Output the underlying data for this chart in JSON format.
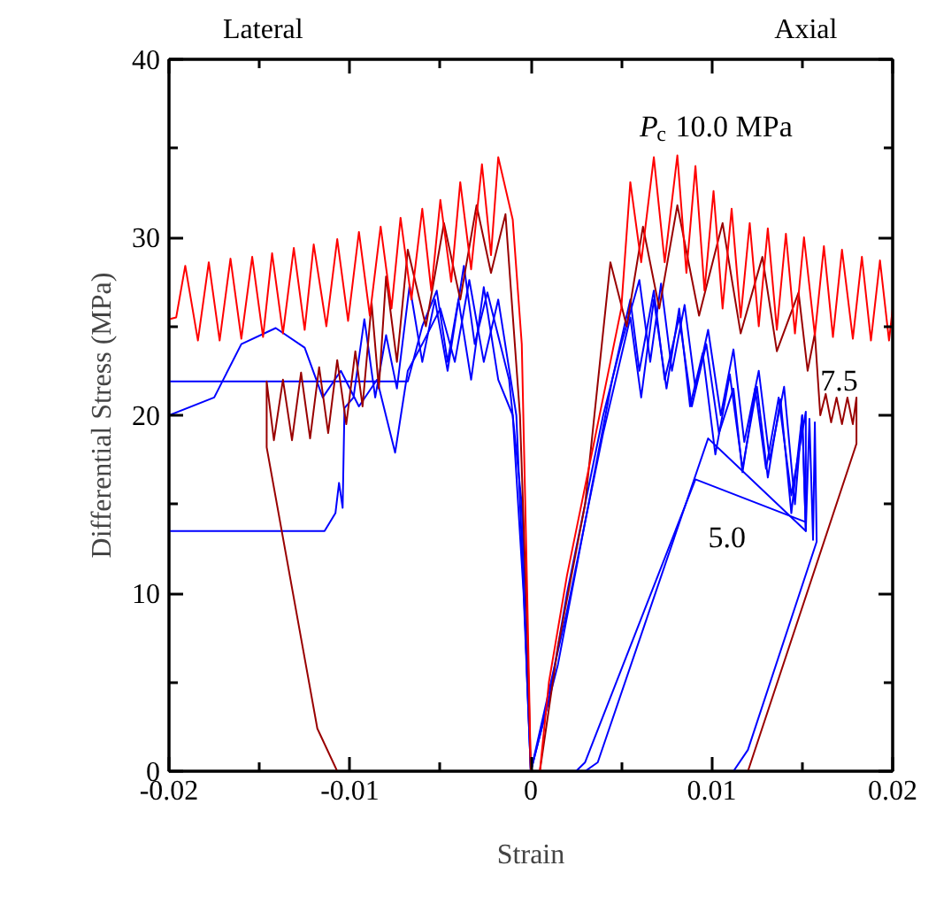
{
  "chart_data": {
    "type": "line",
    "xlabel": "Strain",
    "ylabel": "Differential Stress (MPa)",
    "xlim": [
      -0.02,
      0.02
    ],
    "ylim": [
      0,
      40
    ],
    "xticks": [
      -0.02,
      {
        "value": -0.015,
        "label": null
      },
      -0.01,
      {
        "value": -0.005,
        "label": null
      },
      0,
      {
        "value": 0.005,
        "label": null
      },
      0.01,
      {
        "value": 0.015,
        "label": null
      },
      0.02
    ],
    "yticks": [
      0,
      {
        "value": 5,
        "label": null
      },
      10,
      {
        "value": 15,
        "label": null
      },
      20,
      {
        "value": 25,
        "label": null
      },
      30,
      {
        "value": 35,
        "label": null
      },
      40
    ],
    "grid": false,
    "line_style": "solid",
    "annotations": [
      "Lateral",
      "Axial",
      "P$_{c}$ 10.0 MPa",
      "7.5",
      "5.0"
    ],
    "series": [
      {
        "color": "#0000ff",
        "x": [
          -0.02,
          -0.0114,
          -0.0108,
          -0.0106,
          -0.0104,
          -0.0103,
          -0.0098,
          -0.0092,
          -0.0086,
          -0.008,
          -0.0074,
          -0.0067,
          -0.006,
          -0.0053,
          -0.0046,
          -0.0037,
          -0.0031,
          -0.0024,
          -0.0012,
          -0.0005,
          -0.0002,
          0,
          0.001,
          0.002,
          0.003,
          0.004,
          0.005,
          0.006,
          0.0066,
          0.0072,
          0.0078,
          0.0085,
          0.0091,
          0.0098,
          0.0105,
          0.0112,
          0.0118,
          0.0126,
          0.0132,
          0.014,
          0.0146,
          0.015,
          0.0152,
          0.0154,
          0.0156,
          0.0157,
          0.0158,
          0.012,
          0.0112
        ],
        "values": [
          13.5,
          13.5,
          14.5,
          16.2,
          14.8,
          20.4,
          21,
          25.4,
          21,
          24.5,
          21.5,
          27.3,
          23,
          26.5,
          22.5,
          28.4,
          24,
          26.9,
          22,
          15,
          5,
          0,
          4,
          10,
          15,
          20,
          24,
          27.6,
          23,
          27.4,
          22.5,
          26.2,
          21.5,
          24.8,
          20,
          23.7,
          18.5,
          22.5,
          17.5,
          21.6,
          15,
          20,
          13.5,
          19.8,
          13,
          19.6,
          12.9,
          1.2,
          0
        ]
      },
      {
        "color": "#0000ff",
        "x": [
          -0.02,
          -0.0068,
          -0.006,
          -0.0052,
          -0.0046,
          -0.004,
          -0.0033,
          -0.0026,
          -0.0018,
          -0.001,
          -0.0004,
          0,
          0.0015,
          0.003,
          0.0045,
          0.0055,
          0.006,
          0.0068,
          0.0074,
          0.0082,
          0.0089,
          0.0097,
          0.0104,
          0.0112,
          0.0117,
          0.0124,
          0.013,
          0.0137,
          0.0144,
          0.0152,
          0.0152,
          0.0091,
          0.003,
          0.0025
        ],
        "values": [
          21.9,
          21.9,
          25,
          27,
          23,
          26.5,
          22,
          27.2,
          22,
          20,
          10,
          0,
          6,
          14,
          22,
          26.5,
          22.5,
          27,
          22,
          25.5,
          20.5,
          24,
          19,
          21.5,
          16.8,
          21.5,
          17,
          21,
          15.5,
          20.2,
          14,
          16.4,
          0.5,
          0
        ]
      },
      {
        "color": "#0000ff",
        "x": [
          -0.02,
          -0.0175,
          -0.016,
          -0.0141,
          -0.0125,
          -0.0115,
          -0.0105,
          -0.0095,
          -0.0085,
          -0.0075,
          -0.0068,
          -0.006,
          -0.005,
          -0.0042,
          -0.0034,
          -0.0026,
          -0.0018,
          -0.0008,
          -0.0003,
          0,
          0.002,
          0.004,
          0.0055,
          0.0061,
          0.0068,
          0.0075,
          0.0082,
          0.0088,
          0.0095,
          0.0102,
          0.011,
          0.0117,
          0.0125,
          0.0131,
          0.0138,
          0.0144,
          0.015,
          0.0152,
          0.0098,
          0.0037,
          0.003
        ],
        "values": [
          20,
          21,
          24,
          24.9,
          23.8,
          21,
          22.5,
          20.5,
          22,
          17.9,
          22.5,
          24,
          26,
          23,
          27.6,
          23,
          26.5,
          20,
          8,
          0,
          9,
          19,
          25.5,
          21,
          26.5,
          21.5,
          26,
          20.5,
          23.5,
          17.8,
          22.3,
          17,
          21.6,
          16.5,
          20.9,
          14.5,
          20,
          13.5,
          18.7,
          0.5,
          0
        ]
      },
      {
        "color": "#990000",
        "x": [
          -0.0107,
          -0.0118,
          -0.0146,
          -0.0146,
          -0.0142,
          -0.0137,
          -0.0132,
          -0.0127,
          -0.0122,
          -0.0117,
          -0.0112,
          -0.0107,
          -0.0102,
          -0.0097,
          -0.0093,
          -0.0088,
          -0.0084,
          -0.008,
          -0.0074,
          -0.0068,
          -0.0058,
          -0.0048,
          -0.0039,
          -0.003,
          -0.0022,
          -0.0014,
          -0.0006,
          -0.0002,
          0,
          0.0005,
          0.0015,
          0.003,
          0.0044,
          0.0053,
          0.0062,
          0.0071,
          0.0081,
          0.0093,
          0.0106,
          0.0116,
          0.0128,
          0.0136,
          0.0148,
          0.0153,
          0.0157,
          0.016,
          0.0163,
          0.0166,
          0.0169,
          0.0172,
          0.0175,
          0.0178,
          0.018,
          0.018,
          0.012
        ],
        "values": [
          0,
          2.4,
          18.2,
          21.9,
          18.6,
          22,
          18.6,
          22.4,
          18.7,
          22.7,
          19,
          23.1,
          19.5,
          23.6,
          20.5,
          26.3,
          21.5,
          27.8,
          23,
          29.3,
          25,
          30.8,
          26.5,
          31.8,
          28,
          31.3,
          20,
          8,
          0,
          0,
          7,
          15,
          28.6,
          25,
          30.6,
          26,
          31.8,
          25.6,
          30.8,
          24.6,
          28.9,
          23.6,
          26.9,
          22.5,
          24.6,
          20,
          21.2,
          19.6,
          21,
          19.5,
          21,
          19.5,
          21,
          18.4,
          0
        ]
      },
      {
        "color": "#ff0000",
        "x": [
          -0.02,
          -0.0196,
          -0.0191,
          -0.0184,
          -0.0178,
          -0.0172,
          -0.0166,
          -0.016,
          -0.0154,
          -0.0148,
          -0.0143,
          -0.0137,
          -0.0131,
          -0.0125,
          -0.012,
          -0.0113,
          -0.0107,
          -0.0101,
          -0.0095,
          -0.0089,
          -0.0083,
          -0.0077,
          -0.0072,
          -0.0066,
          -0.006,
          -0.0055,
          -0.005,
          -0.0044,
          -0.0039,
          -0.0033,
          -0.0027,
          -0.0022,
          -0.0018,
          -0.001,
          -0.0005,
          -0.0002,
          0,
          0.0005,
          0.001,
          0.002,
          0.003,
          0.004,
          0.005,
          0.0055,
          0.0061,
          0.0068,
          0.0074,
          0.0081,
          0.0086,
          0.0091,
          0.0096,
          0.0101,
          0.0106,
          0.0111,
          0.0116,
          0.0121,
          0.0126,
          0.0131,
          0.0136,
          0.0141,
          0.0146,
          0.0151,
          0.0157,
          0.0162,
          0.0167,
          0.0172,
          0.0178,
          0.0183,
          0.0188,
          0.0193,
          0.0198,
          0.02
        ],
        "values": [
          25.4,
          25.5,
          28.4,
          24.2,
          28.6,
          24.2,
          28.8,
          24.3,
          28.9,
          24.4,
          29.1,
          24.6,
          29.4,
          24.8,
          29.6,
          25,
          29.9,
          25.3,
          30.3,
          25.6,
          30.6,
          26,
          31.1,
          26.5,
          31.6,
          27,
          32.1,
          27.5,
          33.1,
          28.2,
          34.1,
          29,
          34.5,
          31,
          24,
          10,
          0,
          0,
          5,
          11,
          16,
          21,
          26,
          33.1,
          28.6,
          34.5,
          28.6,
          34.6,
          28,
          34,
          27,
          32.6,
          26,
          31.6,
          25.5,
          30.8,
          25,
          30.5,
          24.8,
          30.2,
          24.6,
          30,
          24.5,
          29.5,
          24.4,
          29.3,
          24.3,
          28.9,
          24.2,
          28.7,
          24.2,
          26
        ]
      }
    ]
  }
}
